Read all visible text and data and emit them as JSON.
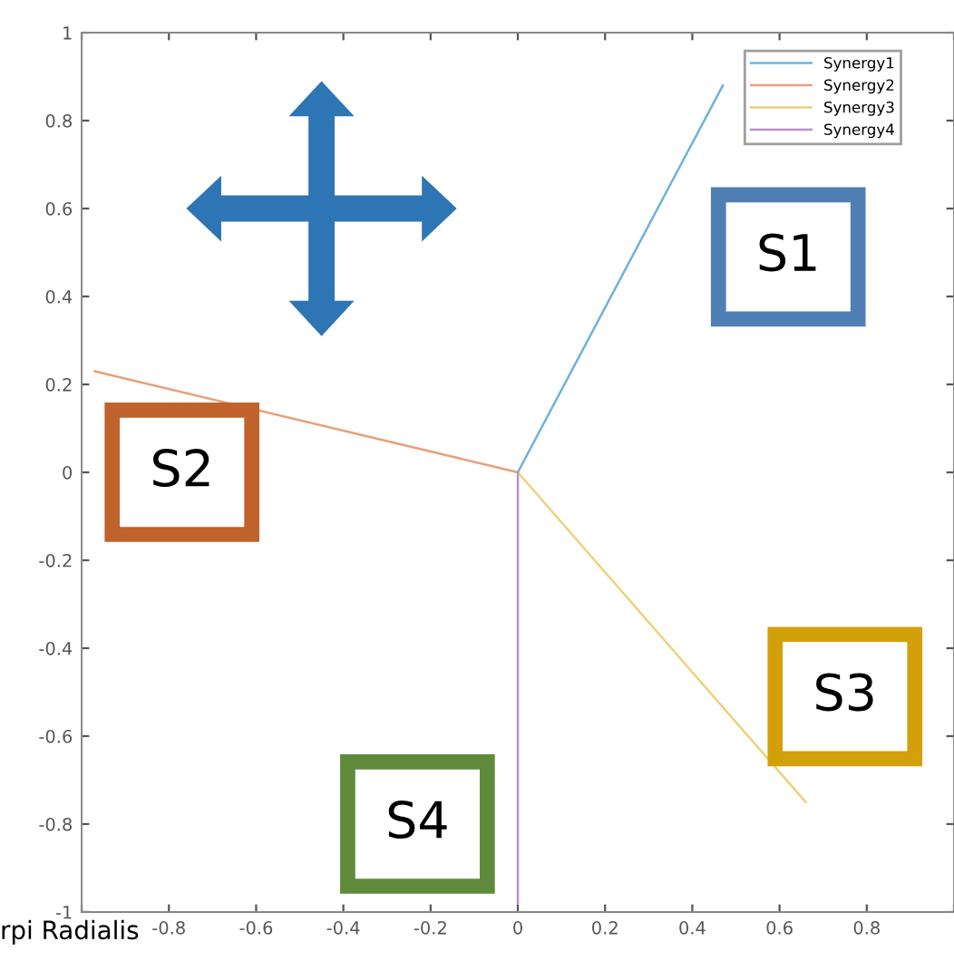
{
  "chart_data": {
    "type": "line",
    "xlim": [
      -1,
      1
    ],
    "ylim": [
      -1,
      1
    ],
    "xticks": [
      {
        "value": -1,
        "label": null
      },
      -0.8,
      -0.6,
      -0.4,
      -0.2,
      0,
      0.2,
      0.4,
      0.6,
      0.8,
      {
        "value": 1,
        "label": null
      }
    ],
    "yticks": [
      -1,
      -0.8,
      -0.6,
      -0.4,
      -0.2,
      0,
      0.2,
      0.4,
      0.6,
      0.8,
      1
    ],
    "series": [
      {
        "name": "Synergy1",
        "color": "#6fb3d9",
        "x": [
          0,
          0.47
        ],
        "values": [
          0,
          0.88
        ]
      },
      {
        "name": "Synergy2",
        "color": "#e8a07a",
        "x": [
          0,
          -0.97
        ],
        "values": [
          0,
          0.23
        ]
      },
      {
        "name": "Synergy3",
        "color": "#edd27a",
        "x": [
          0,
          0.66
        ],
        "values": [
          0,
          -0.75
        ]
      },
      {
        "name": "Synergy4",
        "color": "#b991c9",
        "x": [
          0,
          0
        ],
        "values": [
          0,
          -0.98
        ]
      }
    ],
    "legend": "top right",
    "grid": false,
    "marker": "none",
    "line_style": "solid",
    "annotations": [
      "S1",
      "S2",
      "S3",
      "S4",
      "rpi Radialis"
    ]
  }
}
